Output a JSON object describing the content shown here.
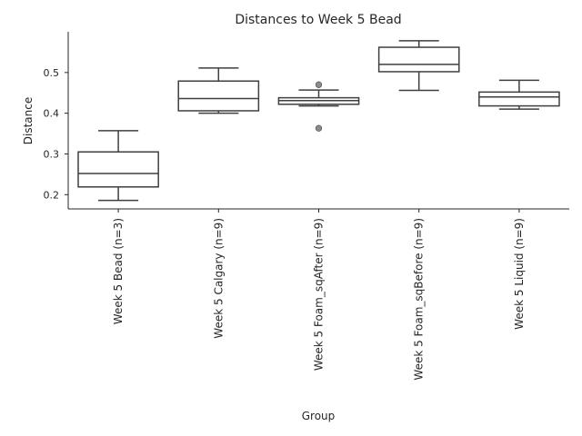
{
  "chart_data": {
    "type": "box",
    "title": "Distances to Week 5 Bead",
    "xlabel": "Group",
    "ylabel": "Distance",
    "ylim": [
      0.165,
      0.6
    ],
    "yticks": [
      0.2,
      0.3,
      0.4,
      0.5
    ],
    "ytick_labels": [
      "0.2",
      "0.3",
      "0.4",
      "0.5"
    ],
    "grid": false,
    "categories": [
      "Week 5 Bead (n=3)",
      "Week 5 Calgary (n=9)",
      "Week 5 Foam_sqAfter (n=9)",
      "Week 5 Foam_sqBefore (n=9)",
      "Week 5 Liquid (n=9)"
    ],
    "boxes": [
      {
        "whisker_low": 0.186,
        "q1": 0.219,
        "median": 0.252,
        "q3": 0.305,
        "whisker_high": 0.357,
        "outliers": []
      },
      {
        "whisker_low": 0.4,
        "q1": 0.406,
        "median": 0.436,
        "q3": 0.479,
        "whisker_high": 0.511,
        "outliers": []
      },
      {
        "whisker_low": 0.418,
        "q1": 0.422,
        "median": 0.431,
        "q3": 0.438,
        "whisker_high": 0.457,
        "outliers": [
          0.47,
          0.363
        ]
      },
      {
        "whisker_low": 0.456,
        "q1": 0.502,
        "median": 0.52,
        "q3": 0.562,
        "whisker_high": 0.578,
        "outliers": []
      },
      {
        "whisker_low": 0.41,
        "q1": 0.418,
        "median": 0.44,
        "q3": 0.452,
        "whisker_high": 0.481,
        "outliers": []
      }
    ],
    "colors": {
      "box_edge": "#3f3f3f",
      "box_fill": "#ffffff",
      "flier_fill": "#8c8c8c",
      "axis": "#262626",
      "text": "#262626"
    }
  }
}
